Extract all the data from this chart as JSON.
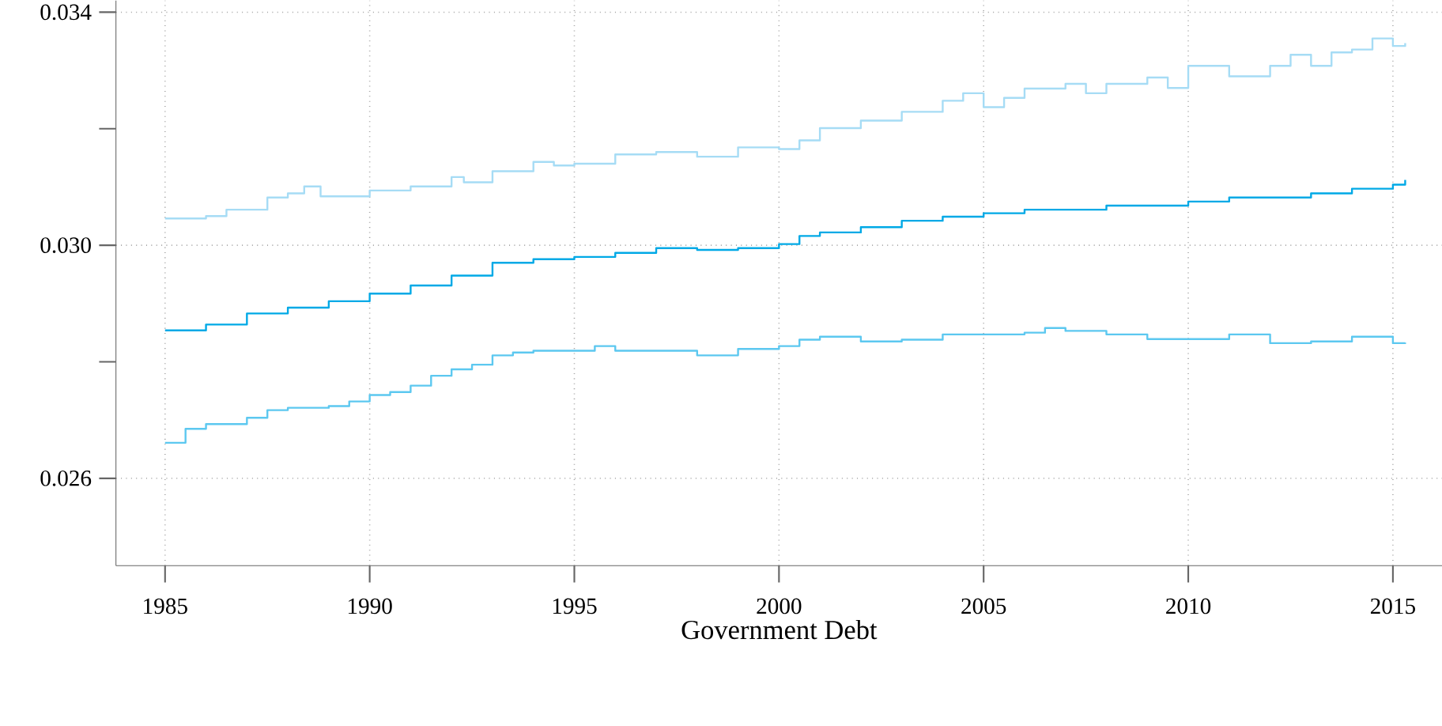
{
  "chart_data": {
    "type": "step",
    "xlabel": "Government Debt",
    "xlim": [
      1983.8,
      2016.2
    ],
    "ylim": [
      0.0245,
      0.0342
    ],
    "xticks": [
      1985,
      1990,
      1995,
      2000,
      2005,
      2010,
      2015
    ],
    "yticks": [
      {
        "value": 0.026,
        "label": "0.026"
      },
      {
        "value": 0.028,
        "label": null
      },
      {
        "value": 0.03,
        "label": "0.030"
      },
      {
        "value": 0.032,
        "label": null
      },
      {
        "value": 0.034,
        "label": "0.034"
      }
    ],
    "grid": true,
    "line_style": "solid",
    "series": [
      {
        "color": "#a6dcf5",
        "x": [
          1985,
          1986,
          1986.5,
          1987.5,
          1988,
          1988.4,
          1988.8,
          1990,
          1991,
          1992,
          1992.3,
          1993,
          1994,
          1994.5,
          1995,
          1996,
          1997,
          1998,
          1999,
          2000,
          2000.5,
          2001,
          2002,
          2003,
          2004,
          2004.5,
          2005,
          2005.5,
          2006,
          2007,
          2007.5,
          2008,
          2009,
          2009.5,
          2010,
          2011,
          2012,
          2012.5,
          2013,
          2013.5,
          2014,
          2014.5,
          2015,
          2015.3
        ],
        "values": [
          0.03046,
          0.0305,
          0.03061,
          0.03082,
          0.03089,
          0.03101,
          0.03084,
          0.03094,
          0.03101,
          0.03117,
          0.03108,
          0.03127,
          0.03143,
          0.03137,
          0.0314,
          0.03156,
          0.0316,
          0.03152,
          0.03168,
          0.03165,
          0.0318,
          0.03201,
          0.03214,
          0.03229,
          0.03248,
          0.03261,
          0.03237,
          0.03253,
          0.03269,
          0.03277,
          0.03261,
          0.03277,
          0.03288,
          0.0327,
          0.03308,
          0.0329,
          0.03308,
          0.03327,
          0.03308,
          0.03331,
          0.03336,
          0.03355,
          0.03342,
          0.03347
        ]
      },
      {
        "color": "#00a9e6",
        "x": [
          1985,
          1986,
          1987,
          1988,
          1989,
          1990,
          1991,
          1992,
          1993,
          1994,
          1995,
          1996,
          1997,
          1998,
          1999,
          2000,
          2000.5,
          2001,
          2002,
          2003,
          2004,
          2005,
          2006,
          2007,
          2008,
          2009,
          2010,
          2011,
          2012,
          2013,
          2014,
          2015,
          2015.3
        ],
        "values": [
          0.02854,
          0.02864,
          0.02883,
          0.02893,
          0.02904,
          0.02917,
          0.02931,
          0.02948,
          0.0297,
          0.02976,
          0.0298,
          0.02987,
          0.02995,
          0.02992,
          0.02995,
          0.03002,
          0.03016,
          0.03022,
          0.03031,
          0.03042,
          0.03049,
          0.03055,
          0.03061,
          0.03061,
          0.03068,
          0.03068,
          0.03075,
          0.03082,
          0.03082,
          0.03089,
          0.03097,
          0.03104,
          0.03112
        ]
      },
      {
        "color": "#5cc8f0",
        "x": [
          1985,
          1985.5,
          1986,
          1987,
          1987.5,
          1988,
          1989,
          1989.5,
          1990,
          1990.5,
          1991,
          1991.5,
          1992,
          1992.5,
          1993,
          1993.5,
          1994,
          1995,
          1995.5,
          1996,
          1997,
          1998,
          1999,
          2000,
          2000.5,
          2001,
          2002,
          2003,
          2004,
          2005,
          2006,
          2006.5,
          2007,
          2008,
          2009,
          2010,
          2011,
          2012,
          2013,
          2014,
          2015,
          2015.3
        ],
        "values": [
          0.02661,
          0.02685,
          0.02693,
          0.02704,
          0.02717,
          0.02721,
          0.02724,
          0.02732,
          0.02743,
          0.02748,
          0.02759,
          0.02776,
          0.02787,
          0.02795,
          0.02811,
          0.02816,
          0.02819,
          0.02819,
          0.02827,
          0.02819,
          0.02819,
          0.02811,
          0.02822,
          0.02827,
          0.02838,
          0.02843,
          0.02835,
          0.02838,
          0.02847,
          0.02847,
          0.0285,
          0.02858,
          0.02853,
          0.02847,
          0.02839,
          0.02839,
          0.02847,
          0.02832,
          0.02835,
          0.02843,
          0.02832,
          0.02833
        ]
      }
    ]
  }
}
